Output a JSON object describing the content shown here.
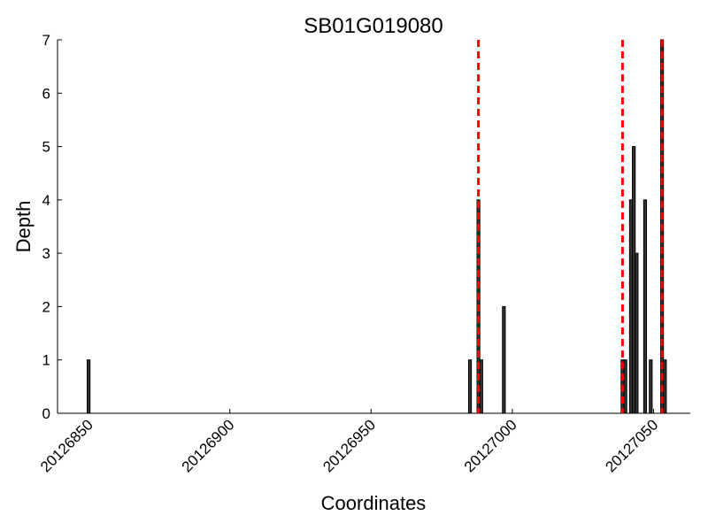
{
  "chart_data": {
    "type": "bar",
    "title": "SB01G019080",
    "xlabel": "Coordinates",
    "ylabel": "Depth",
    "x": [
      20126850,
      20126985,
      20126988,
      20126989,
      20126997,
      20127039,
      20127040,
      20127042,
      20127043,
      20127044,
      20127047,
      20127049,
      20127053,
      20127054
    ],
    "values": [
      1,
      1,
      4,
      1,
      2,
      1,
      1,
      4,
      5,
      3,
      4,
      1,
      7,
      1
    ],
    "color": "#333333",
    "xlim": [
      20126839,
      20127063
    ],
    "xticks": [
      20126850,
      20126900,
      20126950,
      20127000,
      20127050
    ],
    "ylim": [
      0,
      7
    ],
    "yticks": [
      0,
      1,
      2,
      3,
      4,
      5,
      6,
      7
    ],
    "grid": false,
    "vlines": [
      20126988,
      20127039,
      20127053
    ],
    "vline_color": "#ff0000"
  }
}
